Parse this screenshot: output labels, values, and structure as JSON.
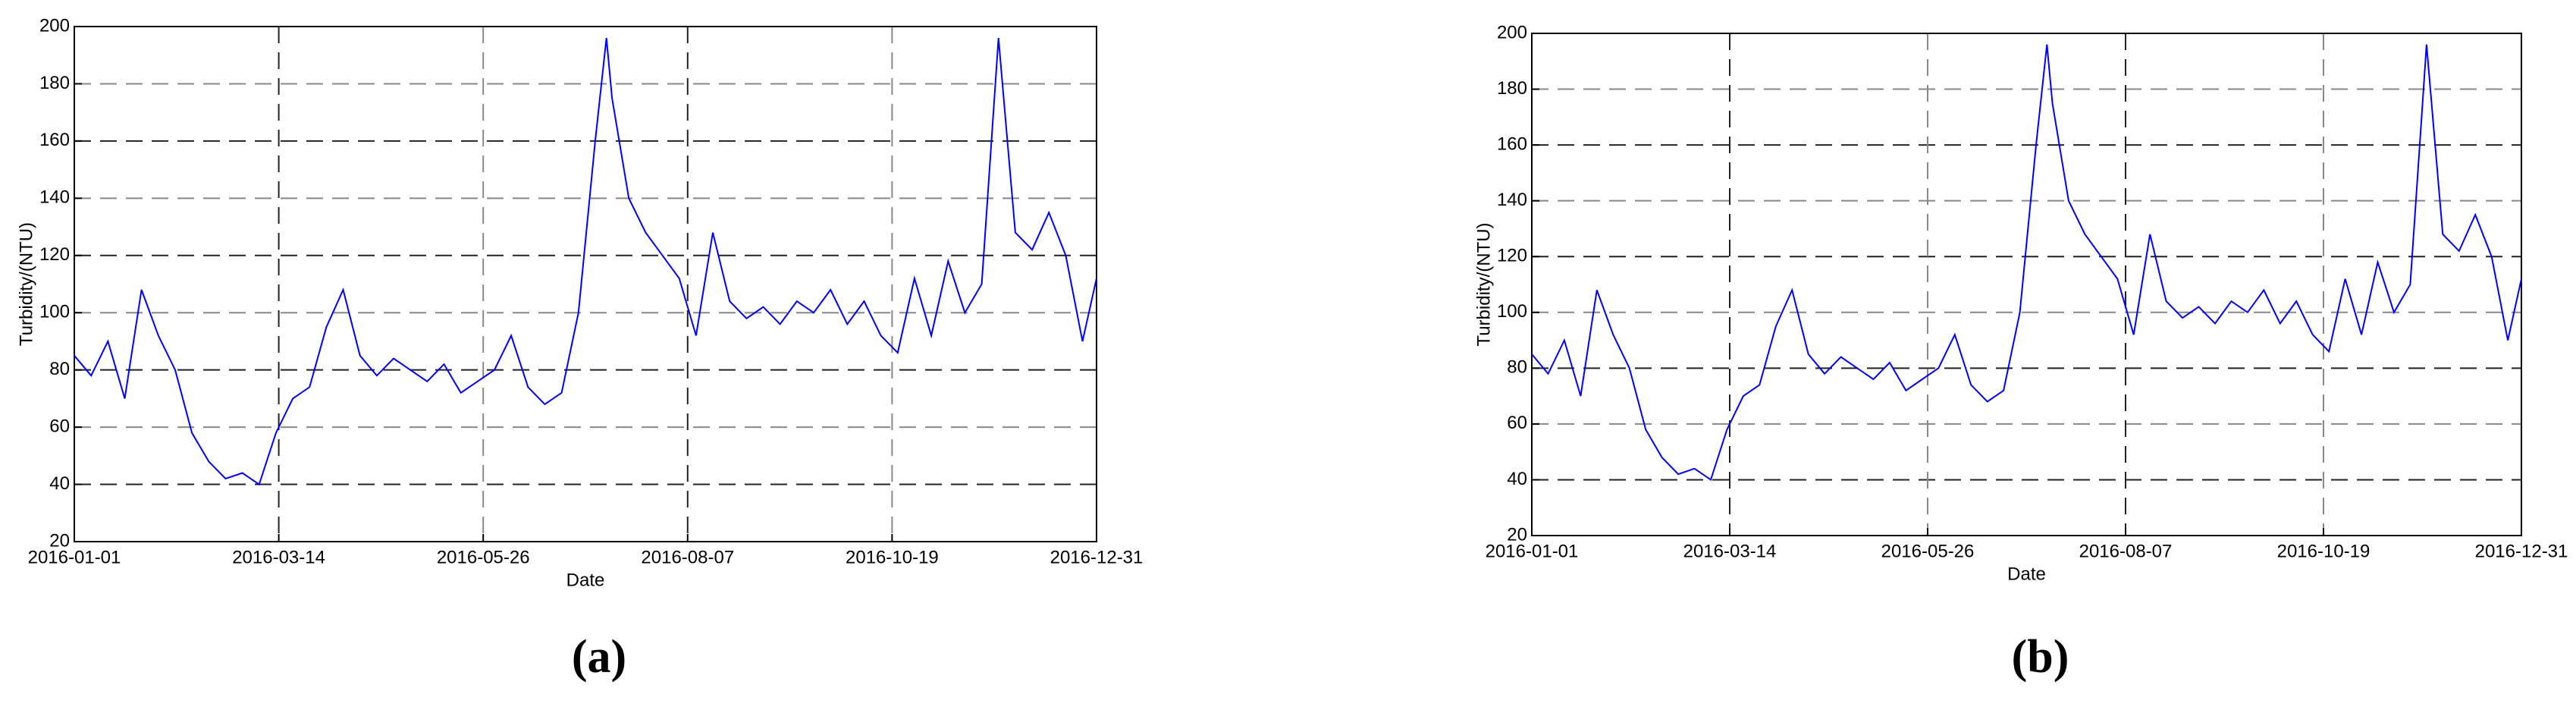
{
  "chart_data": [
    {
      "type": "line",
      "caption": "(a)",
      "xlabel": "Date",
      "ylabel": "Turbidity/(NTU)",
      "color": "#0000ff",
      "grid": true,
      "xlim": [
        "2016-01-01",
        "2016-12-31"
      ],
      "xticks": [
        "2016-01-01",
        "2016-03-14",
        "2016-05-26",
        "2016-08-07",
        "2016-10-19",
        "2016-12-31"
      ],
      "ylim": [
        20,
        200
      ],
      "yticks": [
        20,
        40,
        60,
        80,
        100,
        120,
        140,
        160,
        180,
        200
      ],
      "x": [
        "2016-01-01",
        "2016-01-07",
        "2016-01-13",
        "2016-01-19",
        "2016-01-25",
        "2016-01-31",
        "2016-02-06",
        "2016-02-12",
        "2016-02-18",
        "2016-02-24",
        "2016-03-01",
        "2016-03-07",
        "2016-03-13",
        "2016-03-19",
        "2016-03-25",
        "2016-03-31",
        "2016-04-06",
        "2016-04-12",
        "2016-04-18",
        "2016-04-24",
        "2016-04-30",
        "2016-05-06",
        "2016-05-12",
        "2016-05-18",
        "2016-05-24",
        "2016-05-30",
        "2016-06-05",
        "2016-06-11",
        "2016-06-17",
        "2016-06-23",
        "2016-06-29",
        "2016-07-05",
        "2016-07-09",
        "2016-07-11",
        "2016-07-17",
        "2016-07-23",
        "2016-07-29",
        "2016-08-04",
        "2016-08-10",
        "2016-08-16",
        "2016-08-22",
        "2016-08-28",
        "2016-09-03",
        "2016-09-09",
        "2016-09-15",
        "2016-09-21",
        "2016-09-27",
        "2016-10-03",
        "2016-10-09",
        "2016-10-15",
        "2016-10-21",
        "2016-10-27",
        "2016-11-02",
        "2016-11-08",
        "2016-11-14",
        "2016-11-20",
        "2016-11-26",
        "2016-12-02",
        "2016-12-08",
        "2016-12-14",
        "2016-12-20",
        "2016-12-26",
        "2016-12-31"
      ],
      "values": [
        85,
        78,
        90,
        70,
        108,
        92,
        80,
        58,
        48,
        42,
        44,
        40,
        58,
        70,
        74,
        95,
        108,
        85,
        78,
        84,
        80,
        76,
        82,
        72,
        76,
        80,
        92,
        74,
        68,
        72,
        100,
        160,
        196,
        175,
        140,
        128,
        120,
        112,
        92,
        128,
        104,
        98,
        102,
        96,
        104,
        100,
        108,
        96,
        104,
        92,
        86,
        112,
        92,
        118,
        100,
        110,
        196,
        128,
        122,
        135,
        120,
        90,
        112
      ]
    },
    {
      "type": "line",
      "caption": "(b)",
      "xlabel": "Date",
      "ylabel": "Turbidity/(NTU)",
      "color": "#0000ff",
      "grid": true,
      "xlim": [
        "2016-01-01",
        "2016-12-31"
      ],
      "xticks": [
        "2016-01-01",
        "2016-03-14",
        "2016-05-26",
        "2016-08-07",
        "2016-10-19",
        "2016-12-31"
      ],
      "ylim": [
        20,
        200
      ],
      "yticks": [
        20,
        40,
        60,
        80,
        100,
        120,
        140,
        160,
        180,
        200
      ],
      "x": [
        "2016-01-01",
        "2016-01-07",
        "2016-01-13",
        "2016-01-19",
        "2016-01-25",
        "2016-01-31",
        "2016-02-06",
        "2016-02-12",
        "2016-02-18",
        "2016-02-24",
        "2016-03-01",
        "2016-03-07",
        "2016-03-13",
        "2016-03-19",
        "2016-03-25",
        "2016-03-31",
        "2016-04-06",
        "2016-04-12",
        "2016-04-18",
        "2016-04-24",
        "2016-04-30",
        "2016-05-06",
        "2016-05-12",
        "2016-05-18",
        "2016-05-24",
        "2016-05-30",
        "2016-06-05",
        "2016-06-11",
        "2016-06-17",
        "2016-06-23",
        "2016-06-29",
        "2016-07-05",
        "2016-07-09",
        "2016-07-11",
        "2016-07-17",
        "2016-07-23",
        "2016-07-29",
        "2016-08-04",
        "2016-08-10",
        "2016-08-16",
        "2016-08-22",
        "2016-08-28",
        "2016-09-03",
        "2016-09-09",
        "2016-09-15",
        "2016-09-21",
        "2016-09-27",
        "2016-10-03",
        "2016-10-09",
        "2016-10-15",
        "2016-10-21",
        "2016-10-27",
        "2016-11-02",
        "2016-11-08",
        "2016-11-14",
        "2016-11-20",
        "2016-11-26",
        "2016-12-02",
        "2016-12-08",
        "2016-12-14",
        "2016-12-20",
        "2016-12-26",
        "2016-12-31"
      ],
      "values": [
        85,
        78,
        90,
        70,
        108,
        92,
        80,
        58,
        48,
        42,
        44,
        40,
        58,
        70,
        74,
        95,
        108,
        85,
        78,
        84,
        80,
        76,
        82,
        72,
        76,
        80,
        92,
        74,
        68,
        72,
        100,
        160,
        196,
        175,
        140,
        128,
        120,
        112,
        92,
        128,
        104,
        98,
        102,
        96,
        104,
        100,
        108,
        96,
        104,
        92,
        86,
        112,
        92,
        118,
        100,
        110,
        196,
        128,
        122,
        135,
        120,
        90,
        112
      ]
    }
  ]
}
